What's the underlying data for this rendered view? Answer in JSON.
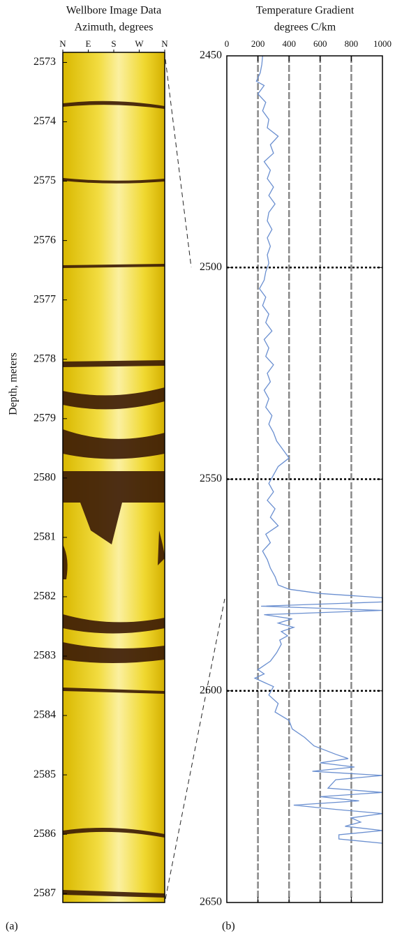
{
  "chart_data": [
    {
      "type": "image",
      "title": "Wellbore Image Data",
      "x_label": "Azimuth, degrees",
      "y_label": "Depth, meters",
      "panel_label": "(a)",
      "xlim": [
        0,
        360
      ],
      "xticks": [
        {
          "value": 0,
          "label": "N"
        },
        {
          "value": 90,
          "label": "E"
        },
        {
          "value": 180,
          "label": "S"
        },
        {
          "value": 270,
          "label": "W"
        },
        {
          "value": 360,
          "label": "N"
        }
      ],
      "ylim": [
        2572.83,
        2587.15
      ],
      "yticks": [
        2573,
        2574,
        2575,
        2576,
        2577,
        2578,
        2579,
        2580,
        2581,
        2582,
        2583,
        2584,
        2585,
        2586,
        2587
      ]
    },
    {
      "type": "line",
      "title": "Temperature Gradient",
      "x_label": "degrees C/km",
      "panel_label": "(b)",
      "xlim": [
        0,
        1000
      ],
      "xticks": [
        0,
        200,
        400,
        600,
        800,
        1000
      ],
      "ylim": [
        2450,
        2650
      ],
      "yticks": [
        2450,
        2500,
        2550,
        2600,
        2650
      ],
      "vgrid": [
        200,
        400,
        600,
        800
      ],
      "hgrid": [
        2500,
        2550,
        2600
      ],
      "x": [
        2450,
        2452,
        2454,
        2456,
        2457,
        2459,
        2461,
        2463,
        2465,
        2467,
        2469,
        2471,
        2473,
        2475,
        2477,
        2479,
        2481,
        2483,
        2485,
        2487,
        2489,
        2491,
        2493,
        2495,
        2497,
        2499,
        2501,
        2503,
        2505,
        2507,
        2509,
        2511,
        2513,
        2515,
        2517,
        2519,
        2521,
        2523,
        2525,
        2527,
        2529,
        2531,
        2533,
        2535,
        2537,
        2539,
        2541,
        2543,
        2545,
        2547,
        2549,
        2551,
        2553,
        2555,
        2557,
        2559,
        2561,
        2563,
        2565,
        2567,
        2569,
        2571,
        2573,
        2575,
        2576,
        2577,
        2578,
        2579,
        2580,
        2581,
        2582,
        2583,
        2584,
        2585,
        2586,
        2587,
        2588,
        2589,
        2591,
        2593,
        2595,
        2596,
        2597,
        2599,
        2601,
        2603,
        2605,
        2607,
        2609,
        2611,
        2613,
        2615,
        2616,
        2617,
        2618,
        2619,
        2620,
        2621,
        2623,
        2624,
        2625,
        2626,
        2627,
        2628,
        2629,
        2630,
        2631,
        2632,
        2633,
        2634,
        2635,
        2636
      ],
      "series": [
        {
          "color": "#6a8fd0",
          "values": [
            230,
            225,
            215,
            190,
            240,
            200,
            250,
            230,
            270,
            260,
            330,
            280,
            300,
            240,
            280,
            260,
            300,
            270,
            310,
            270,
            260,
            290,
            260,
            280,
            260,
            270,
            250,
            240,
            210,
            250,
            230,
            270,
            250,
            290,
            240,
            270,
            250,
            300,
            260,
            280,
            240,
            270,
            250,
            290,
            270,
            300,
            320,
            360,
            400,
            330,
            300,
            270,
            300,
            260,
            310,
            280,
            330,
            250,
            280,
            230,
            260,
            280,
            310,
            330,
            400,
            600,
            1000,
            1000,
            220,
            1000,
            240,
            420,
            330,
            430,
            350,
            390,
            340,
            350,
            320,
            280,
            200,
            240,
            180,
            300,
            270,
            330,
            310,
            400,
            420,
            500,
            560,
            700,
            780,
            600,
            820,
            550,
            1000,
            700,
            650,
            1000,
            600,
            850,
            430,
            700,
            1000,
            800,
            860,
            760,
            1000,
            720,
            720,
            1000
          ]
        }
      ]
    }
  ]
}
